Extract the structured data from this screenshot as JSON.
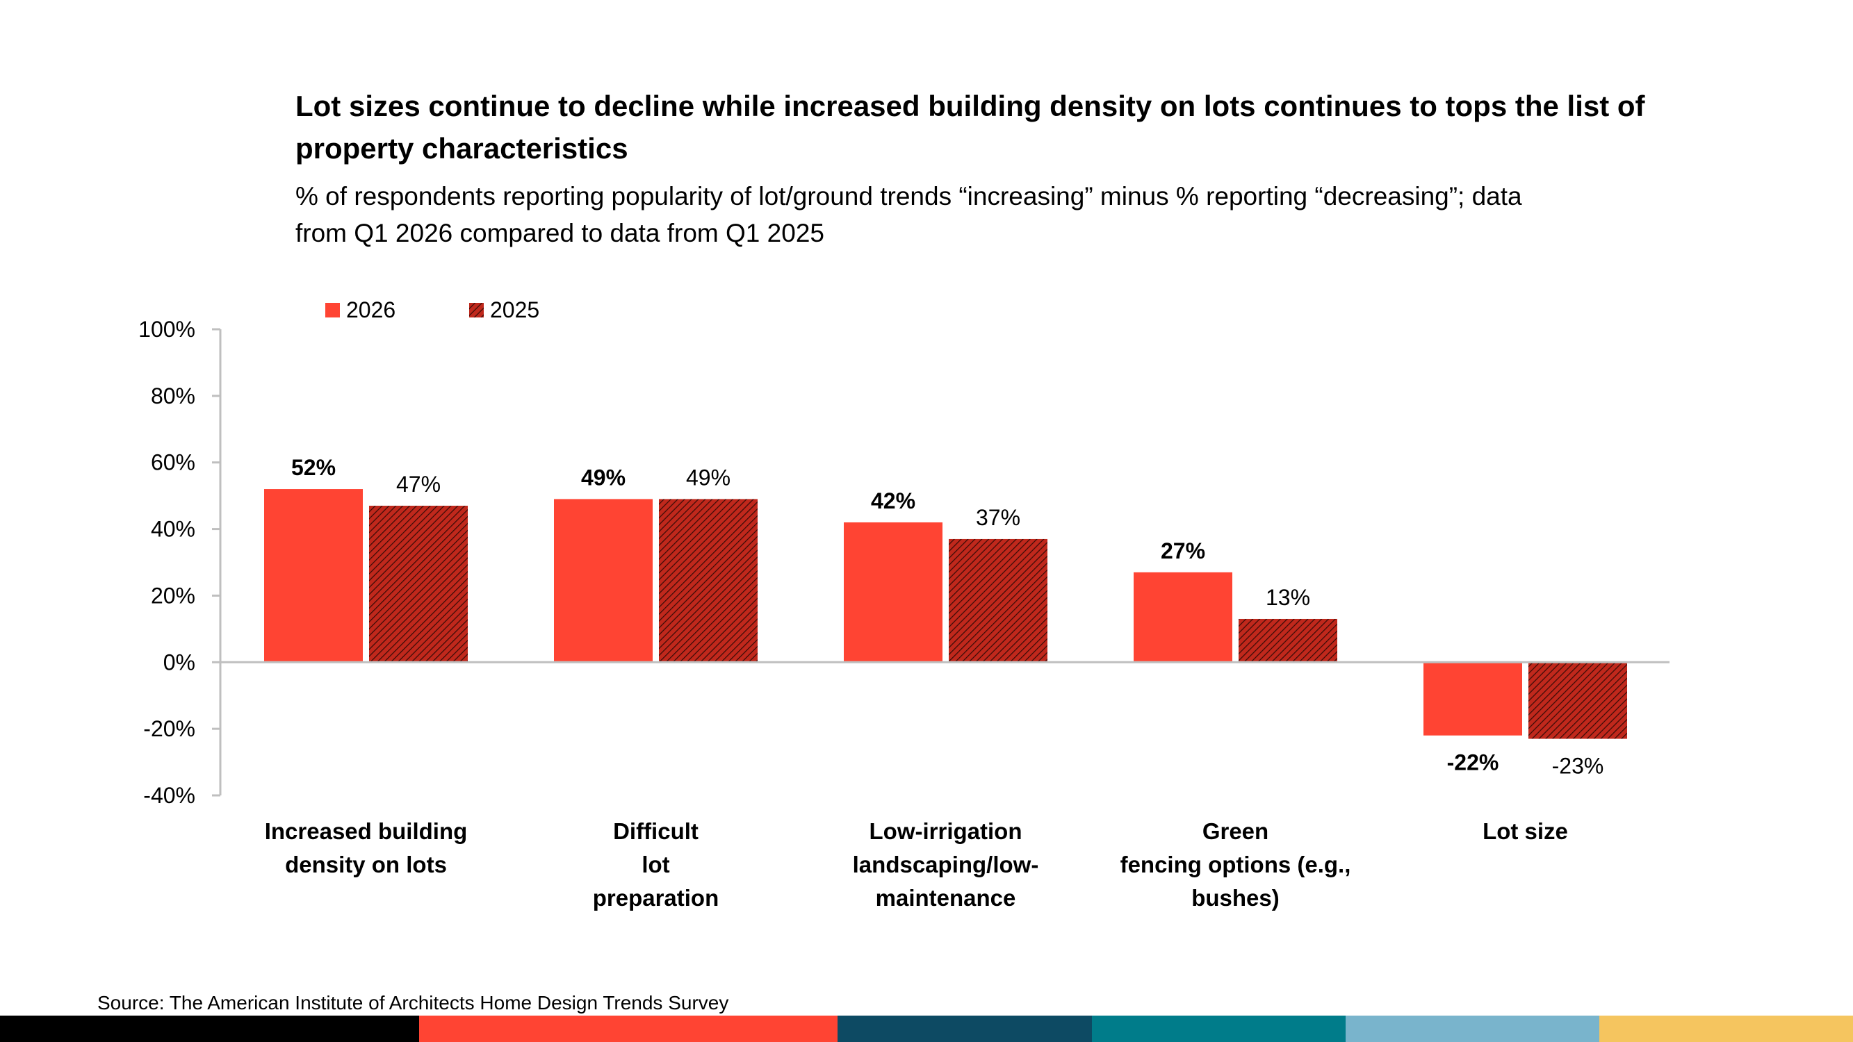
{
  "title": "Lot sizes continue to decline while increased building density on lots continues to tops the list of\nproperty characteristics",
  "subtitle": "% of respondents reporting popularity of lot/ground trends “increasing” minus % reporting “decreasing”; data\nfrom Q1 2026 compared to data from Q1 2025",
  "source": "Source: The American Institute of Architects Home Design Trends Survey",
  "colors": {
    "series_2026": "#ff4433",
    "series_2025": "#c0281c",
    "axis": "#bfbfbf",
    "footer": [
      "#000000",
      "#ff4433",
      "#0d4a63",
      "#007c8a",
      "#79b4cc",
      "#f5c55f"
    ]
  },
  "chart_data": {
    "type": "bar",
    "categories": [
      "Increased building\ndensity on lots",
      "Difficult\nlot\npreparation",
      "Low-irrigation\nlandscaping/low-\nmaintenance",
      "Green\nfencing options (e.g.,\nbushes)",
      "Lot size"
    ],
    "series": [
      {
        "name": "2026",
        "values": [
          52,
          49,
          42,
          27,
          -22
        ],
        "labels": [
          "52%",
          "49%",
          "42%",
          "27%",
          "-22%"
        ],
        "pattern": "solid"
      },
      {
        "name": "2025",
        "values": [
          47,
          49,
          37,
          13,
          -23
        ],
        "labels": [
          "47%",
          "49%",
          "37%",
          "13%",
          "-23%"
        ],
        "pattern": "hatched"
      }
    ],
    "ylim": [
      -40,
      100
    ],
    "yticks": [
      100,
      80,
      60,
      40,
      20,
      0,
      -20,
      -40
    ],
    "ytick_labels": [
      "100%",
      "80%",
      "60%",
      "40%",
      "20%",
      "0%",
      "-20%",
      "-40%"
    ],
    "grid": false,
    "legend": "top-left"
  }
}
